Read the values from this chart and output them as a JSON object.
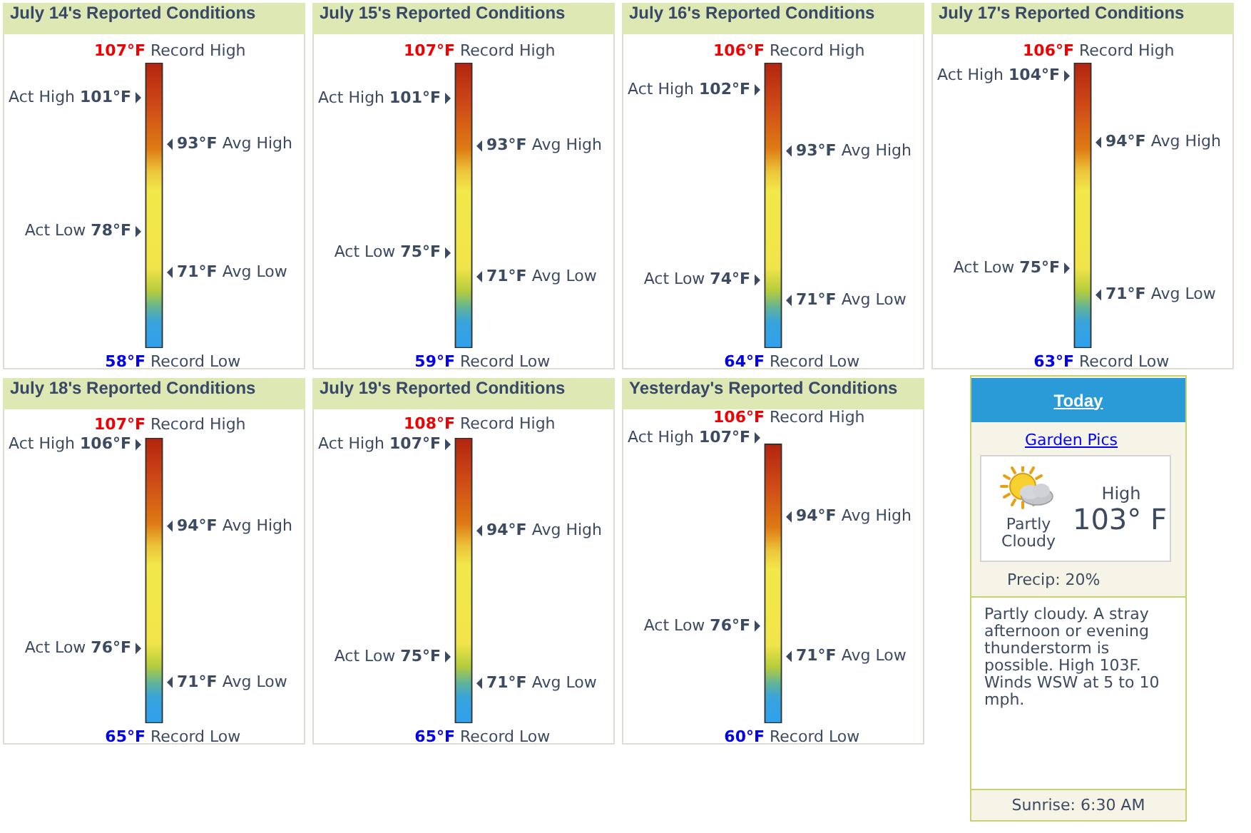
{
  "chart_data": [
    {
      "type": "other",
      "title": "July 14's Reported Conditions",
      "categories": [
        "Record High",
        "Act High",
        "Avg High",
        "Act Low",
        "Avg Low",
        "Record Low"
      ],
      "values": [
        107,
        101,
        93,
        78,
        71,
        58
      ],
      "value_labels": [
        "107°F",
        "101°F",
        "93°F",
        "78°F",
        "71°F",
        "58°F"
      ]
    },
    {
      "type": "other",
      "title": "July 15's Reported Conditions",
      "categories": [
        "Record High",
        "Act High",
        "Avg High",
        "Act Low",
        "Avg Low",
        "Record Low"
      ],
      "values": [
        107,
        101,
        93,
        75,
        71,
        59
      ],
      "value_labels": [
        "107°F",
        "101°F",
        "93°F",
        "75°F",
        "71°F",
        "59°F"
      ]
    },
    {
      "type": "other",
      "title": "July 16's Reported Conditions",
      "categories": [
        "Record High",
        "Act High",
        "Avg High",
        "Act Low",
        "Avg Low",
        "Record Low"
      ],
      "values": [
        106,
        102,
        93,
        74,
        71,
        64
      ],
      "value_labels": [
        "106°F",
        "102°F",
        "93°F",
        "74°F",
        "71°F",
        "64°F"
      ]
    },
    {
      "type": "other",
      "title": "July 17's Reported Conditions",
      "categories": [
        "Record High",
        "Act High",
        "Avg High",
        "Act Low",
        "Avg Low",
        "Record Low"
      ],
      "values": [
        106,
        104,
        94,
        75,
        71,
        63
      ],
      "value_labels": [
        "106°F",
        "104°F",
        "94°F",
        "75°F",
        "71°F",
        "63°F"
      ]
    },
    {
      "type": "other",
      "title": "July 18's Reported Conditions",
      "categories": [
        "Record High",
        "Act High",
        "Avg High",
        "Act Low",
        "Avg Low",
        "Record Low"
      ],
      "values": [
        107,
        106,
        94,
        76,
        71,
        65
      ],
      "value_labels": [
        "107°F",
        "106°F",
        "94°F",
        "76°F",
        "71°F",
        "65°F"
      ]
    },
    {
      "type": "other",
      "title": "July 19's Reported Conditions",
      "categories": [
        "Record High",
        "Act High",
        "Avg High",
        "Act Low",
        "Avg Low",
        "Record Low"
      ],
      "values": [
        108,
        107,
        94,
        75,
        71,
        65
      ],
      "value_labels": [
        "108°F",
        "107°F",
        "94°F",
        "75°F",
        "71°F",
        "65°F"
      ]
    },
    {
      "type": "other",
      "title": "Yesterday's Reported Conditions",
      "categories": [
        "Record High",
        "Act High",
        "Avg High",
        "Act Low",
        "Avg Low",
        "Record Low"
      ],
      "values": [
        106,
        107,
        94,
        76,
        71,
        60
      ],
      "value_labels": [
        "106°F",
        "107°F",
        "94°F",
        "76°F",
        "71°F",
        "60°F"
      ]
    },
    {
      "type": "other",
      "title": "Today",
      "annotations": [
        "Garden Pics",
        "Partly Cloudy",
        "High",
        "103° F",
        "Precip: 20%",
        "Partly cloudy. A stray afternoon or evening thunderstorm is possible. High 103F. Winds WSW at 5 to 10 mph.",
        "Sunrise: 6:30 AM"
      ]
    }
  ]
}
